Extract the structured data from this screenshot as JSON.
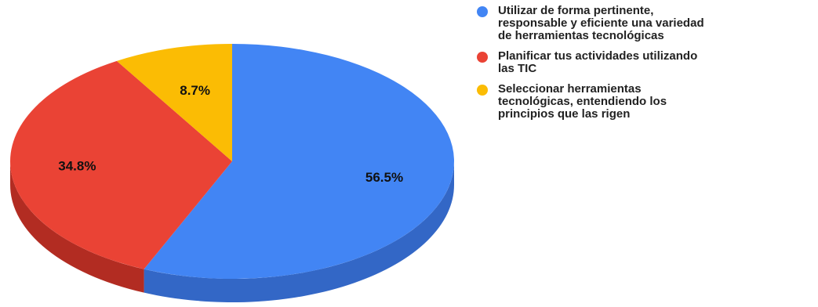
{
  "chart_data": {
    "type": "pie",
    "style": "3d",
    "slices": [
      {
        "label": "Utilizar de forma pertinente,\nresponsable y eficiente una variedad\nde herramientas tecnológicas",
        "value": 56.5,
        "display": "56.5%",
        "color": "#4285f4",
        "side_color": "#3367c6"
      },
      {
        "label": "Planificar  tus actividades utilizando\nlas TIC",
        "value": 34.8,
        "display": "34.8%",
        "color": "#ea4335",
        "side_color": "#b22c22"
      },
      {
        "label": "Seleccionar herramientas\ntecnológicas, entendiendo los\nprincipios que las rigen",
        "value": 8.7,
        "display": "8.7%",
        "color": "#fbbc04",
        "side_color": "#c99504"
      }
    ],
    "legend_position": "right"
  }
}
